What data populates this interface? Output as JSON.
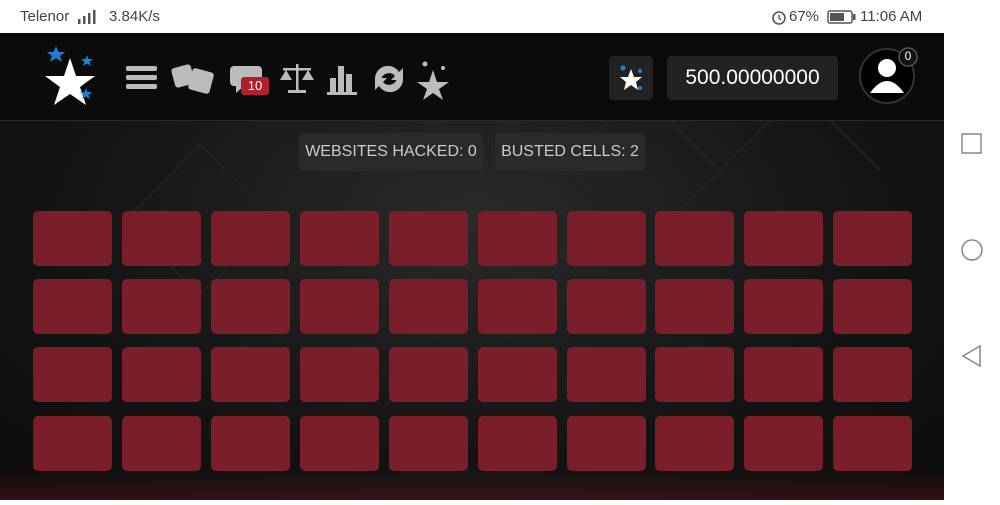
{
  "status_bar": {
    "carrier": "Telenor",
    "speed": "3.84K/s",
    "battery": "67%",
    "time": "11:06 AM"
  },
  "header": {
    "chat_badge": "10",
    "balance": "500.00000000",
    "avatar_badge": "0"
  },
  "stats": {
    "websites_hacked": "WEBSITES HACKED: 0",
    "busted_cells": "BUSTED CELLS: 2"
  }
}
